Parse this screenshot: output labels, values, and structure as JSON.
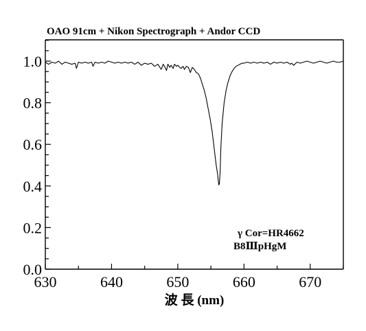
{
  "chart_data": {
    "type": "line",
    "title": "OAO 91cm + Nikon Spectrograph + Andor CCD",
    "xlabel": "波 長 (nm)",
    "ylabel": "",
    "xlim": [
      630,
      675
    ],
    "ylim": [
      0,
      1.1
    ],
    "x_ticks": [
      630,
      640,
      650,
      660,
      670
    ],
    "x_tick_labels": [
      "630",
      "640",
      "650",
      "660",
      "670"
    ],
    "y_ticks": [
      0,
      0.2,
      0.4,
      0.6,
      0.8,
      1.0
    ],
    "y_tick_labels": [
      "0.0",
      "0.2",
      "0.4",
      "0.6",
      "0.8",
      "1.0"
    ],
    "annotations": [
      "γ Cor=HR4662",
      "B8ⅢpHgM"
    ],
    "grid": false,
    "series": [
      {
        "x": [
          630.0,
          630.5,
          631.0,
          631.5,
          632.0,
          632.5,
          633.0,
          633.5,
          634.0,
          634.5,
          634.7,
          635.0,
          635.5,
          636.0,
          636.5,
          637.0,
          637.2,
          637.5,
          638.0,
          638.5,
          639.0,
          639.5,
          640.0,
          640.5,
          641.0,
          641.5,
          642.0,
          642.5,
          643.0,
          643.5,
          644.0,
          644.5,
          645.0,
          645.5,
          646.0,
          646.5,
          647.0,
          647.5,
          647.8,
          648.0,
          648.3,
          648.5,
          648.8,
          649.0,
          649.3,
          649.5,
          649.8,
          650.0,
          650.3,
          650.5,
          650.8,
          651.0,
          651.3,
          651.6,
          651.9,
          652.2,
          652.5,
          652.8,
          653.1,
          653.4,
          653.7,
          654.0,
          654.3,
          654.6,
          654.9,
          655.2,
          655.5,
          655.8,
          656.0,
          656.1,
          656.2,
          656.28,
          656.4,
          656.5,
          656.7,
          657.0,
          657.3,
          657.6,
          657.9,
          658.2,
          658.5,
          658.8,
          659.1,
          659.4,
          659.7,
          660.0,
          660.5,
          661.0,
          661.5,
          662.0,
          662.5,
          663.0,
          663.5,
          664.0,
          664.5,
          665.0,
          665.5,
          666.0,
          666.5,
          667.0,
          667.2,
          667.5,
          668.0,
          668.5,
          669.0,
          669.5,
          670.0,
          670.5,
          671.0,
          671.5,
          672.0,
          672.5,
          673.0,
          673.5,
          674.0,
          674.5,
          675.0
        ],
        "values": [
          0.995,
          0.985,
          0.995,
          0.99,
          1.0,
          0.985,
          0.995,
          0.99,
          0.985,
          0.99,
          0.965,
          0.995,
          0.99,
          0.995,
          0.99,
          0.995,
          0.975,
          0.995,
          0.99,
          0.995,
          0.99,
          1.0,
          0.995,
          0.99,
          0.995,
          0.99,
          0.995,
          0.99,
          0.995,
          0.985,
          0.995,
          0.98,
          0.99,
          0.985,
          0.99,
          0.975,
          0.985,
          0.96,
          0.985,
          0.975,
          0.955,
          0.985,
          0.97,
          0.98,
          0.965,
          0.985,
          0.975,
          0.98,
          0.97,
          0.965,
          0.975,
          0.96,
          0.975,
          0.97,
          0.945,
          0.97,
          0.96,
          0.945,
          0.94,
          0.92,
          0.89,
          0.86,
          0.82,
          0.77,
          0.72,
          0.66,
          0.58,
          0.5,
          0.46,
          0.43,
          0.405,
          0.41,
          0.47,
          0.58,
          0.7,
          0.8,
          0.86,
          0.9,
          0.93,
          0.95,
          0.965,
          0.975,
          0.98,
          0.985,
          0.99,
          0.99,
          0.995,
          0.99,
          0.995,
          0.99,
          0.995,
          0.99,
          0.995,
          0.985,
          0.995,
          0.99,
          0.995,
          0.99,
          0.995,
          0.985,
          0.99,
          0.98,
          0.995,
          0.99,
          0.995,
          1.0,
          0.995,
          0.99,
          0.995,
          1.0,
          0.995,
          0.99,
          0.995,
          1.0,
          0.995,
          0.995,
          1.0
        ]
      }
    ]
  }
}
